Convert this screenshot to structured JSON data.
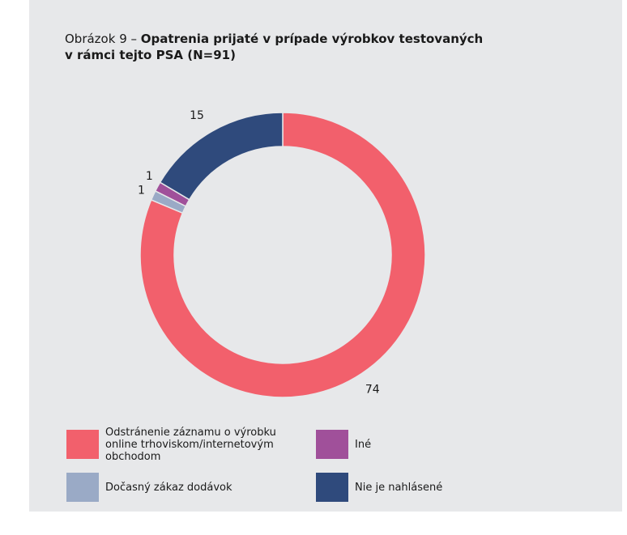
{
  "figure": {
    "title_prefix": "Obrázok 9 – ",
    "title_bold": "Opatrenia prijaté v prípade výrobkov testovaných v rámci tejto PSA (N=91)"
  },
  "chart_data": {
    "type": "pie",
    "donut": true,
    "title": "Obrázok 9 – Opatrenia prijaté v prípade výrobkov testovaných v rámci tejto PSA (N=91)",
    "categories": [
      "Odstránenie záznamu o výrobku online trhoviskom/internetovým obchodom",
      "Dočasný zákaz dodávok",
      "Iné",
      "Nie je nahlásené"
    ],
    "values": [
      74,
      1,
      1,
      15
    ],
    "colors": [
      "#f2606c",
      "#9aaac6",
      "#a0509a",
      "#2f4a7c"
    ],
    "legend_position": "bottom"
  },
  "legend": {
    "items": [
      {
        "label": "Odstránenie záznamu o výrobku online trhoviskom/internetovým obchodom",
        "color": "#f2606c"
      },
      {
        "label": "Iné",
        "color": "#a0509a"
      },
      {
        "label": "Dočasný zákaz dodávok",
        "color": "#9aaac6"
      },
      {
        "label": "Nie je nahlásené",
        "color": "#2f4a7c"
      }
    ]
  }
}
